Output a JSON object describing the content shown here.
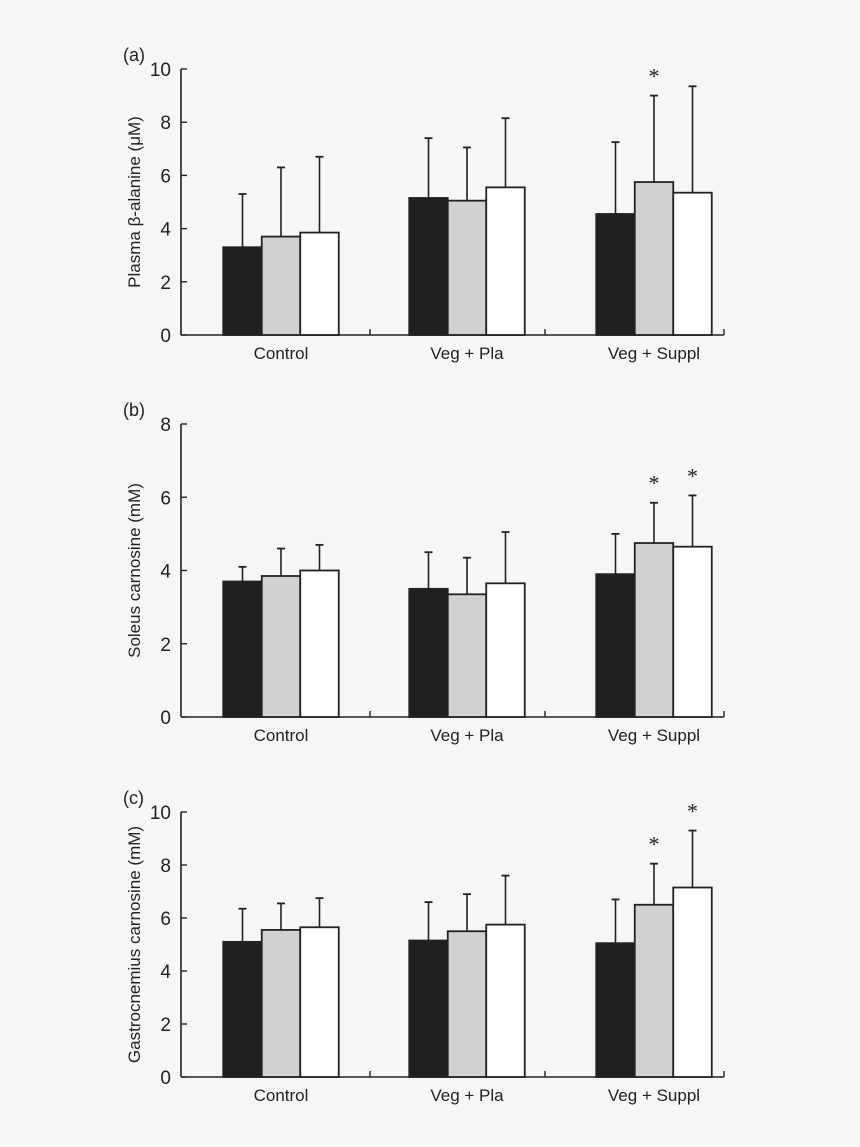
{
  "chart_data": [
    {
      "type": "bar",
      "panel_label": "(a)",
      "ylabel": "Plasma β-alanine (μM)",
      "ylim": [
        0,
        10
      ],
      "yticks": [
        0,
        2,
        4,
        6,
        8,
        10
      ],
      "categories": [
        "Control",
        "Veg + Pla",
        "Veg + Suppl"
      ],
      "series": [
        {
          "color": "#221f20",
          "values": [
            3.3,
            5.15,
            4.55
          ],
          "error_upper": [
            5.3,
            7.4,
            7.25
          ]
        },
        {
          "color": "#d0d1d3",
          "values": [
            3.7,
            5.05,
            5.75
          ],
          "error_upper": [
            6.3,
            7.05,
            9.0
          ]
        },
        {
          "color": "#ffffff",
          "values": [
            3.85,
            5.55,
            5.35
          ],
          "error_upper": [
            6.7,
            8.15,
            9.35
          ]
        }
      ],
      "significance": [
        {
          "category": 2,
          "series": 1,
          "label": "*"
        }
      ]
    },
    {
      "type": "bar",
      "panel_label": "(b)",
      "ylabel": "Soleus carnosine (mM)",
      "ylim": [
        0,
        8
      ],
      "yticks": [
        0,
        2,
        4,
        6,
        8
      ],
      "categories": [
        "Control",
        "Veg + Pla",
        "Veg + Suppl"
      ],
      "series": [
        {
          "color": "#221f20",
          "values": [
            3.7,
            3.5,
            3.9
          ],
          "error_upper": [
            4.1,
            4.5,
            5.0
          ]
        },
        {
          "color": "#d0d1d3",
          "values": [
            3.85,
            3.35,
            4.75
          ],
          "error_upper": [
            4.6,
            4.35,
            5.85
          ]
        },
        {
          "color": "#ffffff",
          "values": [
            4.0,
            3.65,
            4.65
          ],
          "error_upper": [
            4.7,
            5.05,
            6.05
          ]
        }
      ],
      "significance": [
        {
          "category": 2,
          "series": 1,
          "label": "*"
        },
        {
          "category": 2,
          "series": 2,
          "label": "*"
        }
      ]
    },
    {
      "type": "bar",
      "panel_label": "(c)",
      "ylabel": "Gastrocnemius carnosine (mM)",
      "ylim": [
        0,
        10
      ],
      "yticks": [
        0,
        2,
        4,
        6,
        8,
        10
      ],
      "categories": [
        "Control",
        "Veg + Pla",
        "Veg + Suppl"
      ],
      "series": [
        {
          "color": "#221f20",
          "values": [
            5.1,
            5.15,
            5.05
          ],
          "error_upper": [
            6.35,
            6.6,
            6.7
          ]
        },
        {
          "color": "#d0d1d3",
          "values": [
            5.55,
            5.5,
            6.5
          ],
          "error_upper": [
            6.55,
            6.9,
            8.05
          ]
        },
        {
          "color": "#ffffff",
          "values": [
            5.65,
            5.75,
            7.15
          ],
          "error_upper": [
            6.75,
            7.6,
            9.3
          ]
        }
      ],
      "significance": [
        {
          "category": 2,
          "series": 1,
          "label": "*"
        },
        {
          "category": 2,
          "series": 2,
          "label": "*"
        }
      ]
    }
  ]
}
